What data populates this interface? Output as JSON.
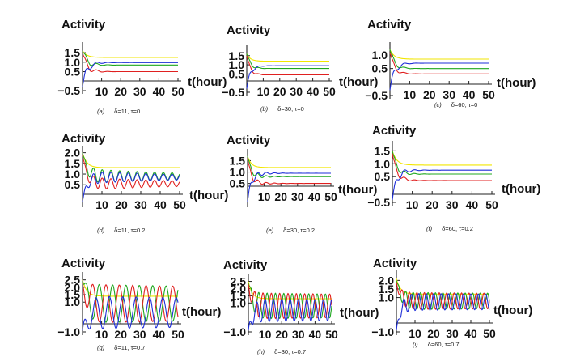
{
  "colors": {
    "yellow": "#f2e600",
    "green": "#1fa81f",
    "blue": "#1f2fd8",
    "red": "#e02020"
  },
  "chart_data": [
    {
      "id": "a",
      "type": "line",
      "title": "",
      "ylabel": "Activity",
      "xlabel": "t(hour)",
      "caption_letter": "(a)",
      "caption_params": "δ=11, τ=0",
      "xticks": [
        "10",
        "20",
        "30",
        "40",
        "50"
      ],
      "yticks": [
        "1.5",
        "1.0",
        "0.5",
        "−0.5"
      ],
      "xlim": [
        0,
        50
      ],
      "ylim": [
        -0.5,
        1.8
      ],
      "series": [
        {
          "color": "yellow",
          "steady": 1.25,
          "start": 1.6,
          "amp": 0.0,
          "period": 6,
          "decay": 4
        },
        {
          "color": "green",
          "steady": 0.85,
          "start": 1.6,
          "amp": 0.5,
          "period": 6,
          "decay": 3.5
        },
        {
          "color": "red",
          "steady": 0.5,
          "start": 1.5,
          "amp": 0.5,
          "period": 6,
          "decay": 3.5
        },
        {
          "color": "blue",
          "steady": 0.98,
          "start": -0.3,
          "amp": 0.6,
          "period": 6,
          "decay": 3.5
        }
      ]
    },
    {
      "id": "b",
      "type": "line",
      "title": "",
      "ylabel": "Activity",
      "xlabel": "t(hour)",
      "caption_letter": "(b)",
      "caption_params": "δ=30, τ=0",
      "xticks": [
        "10",
        "20",
        "30",
        "40",
        "50"
      ],
      "yticks": [
        "1.5",
        "1.0",
        "0.5",
        "−0.5"
      ],
      "xlim": [
        0,
        50
      ],
      "ylim": [
        -0.5,
        1.8
      ],
      "series": [
        {
          "color": "yellow",
          "steady": 1.2,
          "start": 1.6,
          "amp": 0.0,
          "period": 6,
          "decay": 4
        },
        {
          "color": "green",
          "steady": 0.8,
          "start": 1.6,
          "amp": 0.3,
          "period": 6,
          "decay": 3
        },
        {
          "color": "red",
          "steady": 0.45,
          "start": 1.5,
          "amp": 0.3,
          "period": 6,
          "decay": 3
        },
        {
          "color": "blue",
          "steady": 0.95,
          "start": -0.3,
          "amp": 0.4,
          "period": 6,
          "decay": 3
        }
      ]
    },
    {
      "id": "c",
      "type": "line",
      "title": "",
      "ylabel": "Activity",
      "xlabel": "t(hour)",
      "caption_letter": "(c)",
      "caption_params": "δ=60, τ=0",
      "xticks": [
        "10",
        "20",
        "30",
        "40",
        "50"
      ],
      "yticks": [
        "1.0",
        "0.5",
        "−0.5"
      ],
      "xlim": [
        0,
        50
      ],
      "ylim": [
        -0.5,
        1.3
      ],
      "series": [
        {
          "color": "yellow",
          "steady": 0.85,
          "start": 1.2,
          "amp": 0.0,
          "period": 6,
          "decay": 4
        },
        {
          "color": "green",
          "steady": 0.5,
          "start": 1.2,
          "amp": 0.3,
          "period": 6,
          "decay": 3
        },
        {
          "color": "red",
          "steady": 0.3,
          "start": 1.1,
          "amp": 0.3,
          "period": 6,
          "decay": 3
        },
        {
          "color": "blue",
          "steady": 0.7,
          "start": -0.3,
          "amp": 0.4,
          "period": 6,
          "decay": 3
        }
      ]
    },
    {
      "id": "d",
      "type": "line",
      "title": "",
      "ylabel": "Activity",
      "xlabel": "t(hour)",
      "caption_letter": "(d)",
      "caption_params": "δ=11, τ=0.2",
      "xticks": [
        "10",
        "20",
        "30",
        "40",
        "50"
      ],
      "yticks": [
        "2.0",
        "1.5",
        "1.0",
        "0.5"
      ],
      "xlim": [
        0,
        50
      ],
      "ylim": [
        -0.4,
        2.1
      ],
      "series": [
        {
          "color": "yellow",
          "steady": 1.3,
          "start": 2.0,
          "amp": 0.0,
          "period": 6,
          "decay": 4
        },
        {
          "color": "green",
          "steady": 0.9,
          "start": 2.0,
          "amp": 0.35,
          "period": 4.5,
          "decay": 60
        },
        {
          "color": "red",
          "steady": 0.55,
          "start": 1.9,
          "amp": 0.3,
          "period": 4.5,
          "decay": 60
        },
        {
          "color": "blue",
          "steady": 0.85,
          "start": -0.3,
          "amp": 0.3,
          "period": 4.5,
          "decay": 60
        }
      ]
    },
    {
      "id": "e",
      "type": "line",
      "title": "",
      "ylabel": "Activity",
      "xlabel": "t(hour)",
      "caption_letter": "(e)",
      "caption_params": "δ=30, τ=0.2",
      "xticks": [
        "10",
        "20",
        "30",
        "40",
        "50"
      ],
      "yticks": [
        "1.5",
        "1.0",
        "0.5"
      ],
      "xlim": [
        0,
        50
      ],
      "ylim": [
        -0.4,
        1.8
      ],
      "series": [
        {
          "color": "yellow",
          "steady": 1.2,
          "start": 1.7,
          "amp": 0.0,
          "period": 6,
          "decay": 4
        },
        {
          "color": "green",
          "steady": 0.8,
          "start": 1.7,
          "amp": 0.25,
          "period": 5,
          "decay": 6
        },
        {
          "color": "red",
          "steady": 0.5,
          "start": 1.6,
          "amp": 0.25,
          "period": 5,
          "decay": 6
        },
        {
          "color": "blue",
          "steady": 0.95,
          "start": -0.3,
          "amp": 0.3,
          "period": 5,
          "decay": 6
        }
      ]
    },
    {
      "id": "f",
      "type": "line",
      "title": "",
      "ylabel": "Activity",
      "xlabel": "t(hour)",
      "caption_letter": "(f)",
      "caption_params": "δ=60, τ=0.2",
      "xticks": [
        "10",
        "20",
        "30",
        "40",
        "50"
      ],
      "yticks": [
        "1.5",
        "1.0",
        "0.5",
        "−0.5"
      ],
      "xlim": [
        0,
        50
      ],
      "ylim": [
        -0.5,
        1.7
      ],
      "series": [
        {
          "color": "yellow",
          "steady": 0.95,
          "start": 1.5,
          "amp": 0.0,
          "period": 6,
          "decay": 4
        },
        {
          "color": "green",
          "steady": 0.6,
          "start": 1.5,
          "amp": 0.3,
          "period": 5,
          "decay": 4
        },
        {
          "color": "red",
          "steady": 0.35,
          "start": 1.4,
          "amp": 0.3,
          "period": 5,
          "decay": 4
        },
        {
          "color": "blue",
          "steady": 0.75,
          "start": -0.4,
          "amp": 0.4,
          "period": 5,
          "decay": 4
        }
      ]
    },
    {
      "id": "g",
      "type": "line",
      "title": "",
      "ylabel": "Activity",
      "xlabel": "t(hour)",
      "caption_letter": "(g)",
      "caption_params": "δ=11, τ=0.7",
      "xticks": [
        "10",
        "20",
        "30",
        "40",
        "50"
      ],
      "yticks": [
        "2.5",
        "2.0",
        "1.5",
        "1.0",
        "−1.0"
      ],
      "xlim": [
        0,
        50
      ],
      "ylim": [
        -1.0,
        2.7
      ],
      "series": [
        {
          "color": "yellow",
          "steady": 1.4,
          "start": 2.5,
          "amp": 0.0,
          "period": 6,
          "decay": 4
        },
        {
          "color": "green",
          "steady": 0.9,
          "start": 2.4,
          "amp": 1.3,
          "period": 7,
          "decay": 500
        },
        {
          "color": "red",
          "steady": 0.9,
          "start": 2.3,
          "amp": 1.3,
          "period": 7,
          "decay": 500,
          "phase": 3.1
        },
        {
          "color": "blue",
          "steady": 0.3,
          "start": -0.9,
          "amp": 1.1,
          "period": 7,
          "decay": 500,
          "phase": 1.5
        }
      ]
    },
    {
      "id": "h",
      "type": "line",
      "title": "",
      "ylabel": "Activity",
      "xlabel": "t(hour)",
      "caption_letter": "(h)",
      "caption_params": "δ=30, τ=0.7",
      "xticks": [
        "10",
        "20",
        "30",
        "40",
        "50"
      ],
      "yticks": [
        "2.5",
        "2.0",
        "1.5",
        "1.0",
        "−1.0"
      ],
      "xlim": [
        0,
        50
      ],
      "ylim": [
        -1.0,
        2.7
      ],
      "series": [
        {
          "color": "yellow",
          "steady": 1.3,
          "start": 2.5,
          "amp": 0.0,
          "period": 6,
          "decay": 4
        },
        {
          "color": "green",
          "steady": 0.8,
          "start": 2.4,
          "amp": 0.9,
          "period": 5,
          "decay": 500
        },
        {
          "color": "red",
          "steady": 0.8,
          "start": 2.3,
          "amp": 0.9,
          "period": 5,
          "decay": 500,
          "phase": 3.1
        },
        {
          "color": "blue",
          "steady": 0.5,
          "start": -0.9,
          "amp": 0.8,
          "period": 5,
          "decay": 500,
          "phase": 1.5
        }
      ]
    },
    {
      "id": "i",
      "type": "line",
      "title": "",
      "ylabel": "Activity",
      "xlabel": "t(hour)",
      "caption_letter": "(i)",
      "caption_params": "δ=60, τ=0.7",
      "xticks": [
        "10",
        "20",
        "30",
        "40",
        "50"
      ],
      "yticks": [
        "2.0",
        "1.5",
        "1.0",
        "−1.0"
      ],
      "xlim": [
        0,
        50
      ],
      "ylim": [
        -1.0,
        2.3
      ],
      "series": [
        {
          "color": "yellow",
          "steady": 1.2,
          "start": 2.1,
          "amp": 0.0,
          "period": 6,
          "decay": 4
        },
        {
          "color": "green",
          "steady": 0.8,
          "start": 2.0,
          "amp": 0.5,
          "period": 4,
          "decay": 500
        },
        {
          "color": "red",
          "steady": 0.8,
          "start": 1.9,
          "amp": 0.5,
          "period": 4,
          "decay": 500,
          "phase": 3.1
        },
        {
          "color": "blue",
          "steady": 0.75,
          "start": -0.9,
          "amp": 0.5,
          "period": 4,
          "decay": 500,
          "phase": 1.5
        }
      ]
    }
  ]
}
